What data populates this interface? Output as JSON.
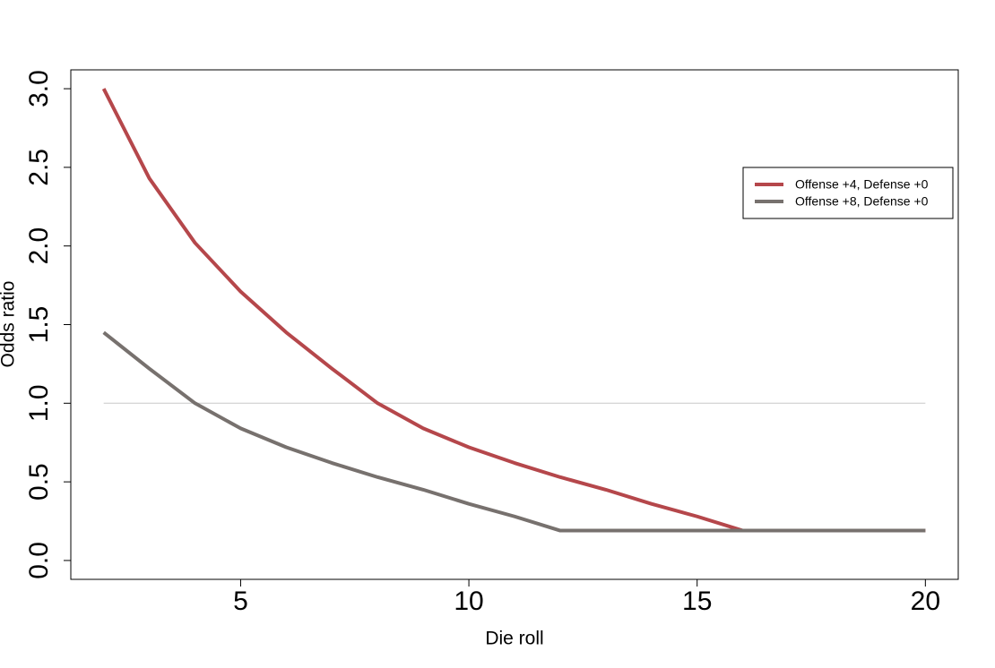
{
  "chart_data": {
    "type": "line",
    "x_label": "Die roll",
    "y_label": "Odds ratio",
    "x": [
      2,
      3,
      4,
      5,
      6,
      7,
      8,
      9,
      10,
      11,
      12,
      13,
      14,
      15,
      16,
      17,
      18,
      19,
      20
    ],
    "series": [
      {
        "name": "Offense +4, Defense +0",
        "color": "#b5474b",
        "values": [
          3.0,
          2.43,
          2.02,
          1.71,
          1.45,
          1.22,
          1.0,
          0.84,
          0.72,
          0.62,
          0.53,
          0.45,
          0.36,
          0.28,
          0.19,
          0.19,
          0.19,
          0.19,
          0.19
        ]
      },
      {
        "name": "Offense +8, Defense +0",
        "color": "#77716e",
        "values": [
          1.45,
          1.22,
          1.0,
          0.84,
          0.72,
          0.62,
          0.53,
          0.45,
          0.36,
          0.28,
          0.19,
          0.19,
          0.19,
          0.19,
          0.19,
          0.19,
          0.19,
          0.19,
          0.19
        ]
      }
    ],
    "hline": 1.0,
    "xlim": [
      1.28,
      20.72
    ],
    "ylim": [
      -0.12,
      3.12
    ],
    "xticks": [
      5,
      10,
      15,
      20
    ],
    "yticks": [
      {
        "value": 0,
        "label": "0.0"
      },
      {
        "value": 0.5,
        "label": "0.5"
      },
      {
        "value": 1,
        "label": "1.0"
      },
      {
        "value": 1.5,
        "label": "1.5"
      },
      {
        "value": 2,
        "label": "2.0"
      },
      {
        "value": 2.5,
        "label": "2.5"
      },
      {
        "value": 3,
        "label": "3.0"
      }
    ],
    "legend_position": "topright"
  }
}
